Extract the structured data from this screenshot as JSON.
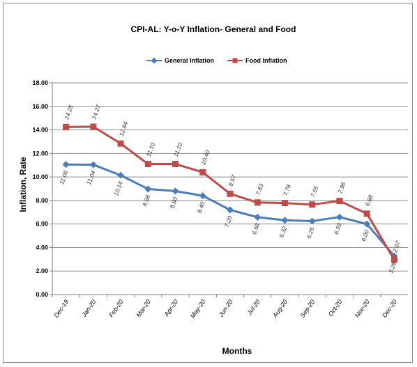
{
  "chart_data": {
    "type": "line",
    "title": "CPI-AL: Y-o-Y Inflation- General and Food",
    "xlabel": "Months",
    "ylabel": "Inflation, Rate",
    "categories": [
      "Dec-19",
      "Jan-20",
      "Feb-20",
      "Mar-20",
      "Apr-20",
      "May-20",
      "Jun-20",
      "Jul-20",
      "Aug-20",
      "Sep-20",
      "Oct-20",
      "Nov-20",
      "Dec-20"
    ],
    "ylim": [
      0,
      18
    ],
    "yticks": [
      "0.00",
      "2.00",
      "4.00",
      "6.00",
      "8.00",
      "10.00",
      "12.00",
      "14.00",
      "16.00",
      "18.00"
    ],
    "grid": true,
    "legend_position": "top",
    "series": [
      {
        "name": "General Inflation",
        "color": "#4a7ebb",
        "marker": "diamond",
        "values": [
          11.06,
          11.04,
          10.14,
          8.98,
          8.8,
          8.4,
          7.2,
          6.58,
          6.32,
          6.25,
          6.59,
          6.0,
          3.28
        ],
        "labels": [
          "11.06",
          "11.04",
          "10.14",
          "8.98",
          "8.80",
          "8.40",
          "7.20",
          "6.58",
          "6.32",
          "6.25",
          "6.59",
          "6.00",
          "3.28"
        ]
      },
      {
        "name": "Food Inflation",
        "color": "#be4b48",
        "marker": "square",
        "values": [
          14.25,
          14.27,
          12.84,
          11.1,
          11.1,
          10.4,
          8.57,
          7.83,
          7.78,
          7.65,
          7.96,
          6.88,
          2.97
        ],
        "labels": [
          "14.25",
          "14.27",
          "12.84",
          "11.10",
          "11.10",
          "10.40",
          "8.57",
          "7.83",
          "7.78",
          "7.65",
          "7.96",
          "6.88",
          "2.97"
        ]
      }
    ]
  }
}
